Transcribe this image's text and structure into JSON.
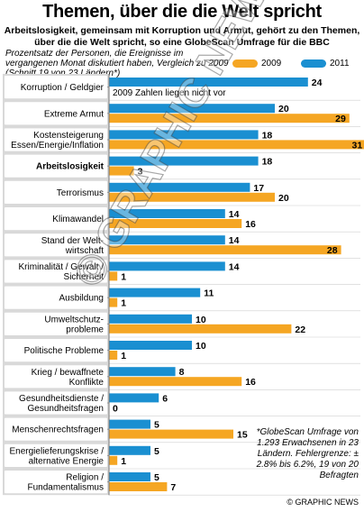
{
  "title": "Themen, über die die Welt spricht",
  "subtitle": "Arbeitslosigkeit, gemeinsam mit Korruption und Armut, gehört zu den Themen, über die die Welt spricht, so eine GlobeScan Umfrage für die BBC",
  "description": "Prozentsatz der Personen, die Ereignisse im vergangenen Monat diskutiert haben, Vergleich zu 2009 (Schnitt 19 von 23 Ländern*)",
  "legend": {
    "y2009": "2009",
    "y2011": "2011",
    "color2009": "#f5a623",
    "color2011": "#1a8fd1"
  },
  "annotation": "2009 Zahlen liegen nicht vor",
  "footnote": "*GlobeScan Umfrage von 1.293 Erwachsenen in 23 Ländern. Fehlergrenze: ± 2.8% bis 6.2%, 19 von 20 Befragten",
  "credit": "© GRAPHIC NEWS",
  "watermark": "© GRAPHIC NEWS",
  "chart_data": {
    "type": "bar",
    "orientation": "horizontal",
    "categories": [
      "Korruption / Geldgier",
      "Extreme Armut",
      "Kostensteigerung Essen/Energie/Inflation",
      "Arbeitslosigkeit",
      "Terrorismus",
      "Klimawandel",
      "Stand der Welt-wirtschaft",
      "Kriminalität / Gewalt / Sicherheit",
      "Ausbildung",
      "Umweltschutz-probleme",
      "Politische Probleme",
      "Krieg / bewaffnete Konflikte",
      "Gesundheitsdienste / Gesundheitsfragen",
      "Menschenrechtsfragen",
      "Energielieferungskrise / alternative Energie",
      "Religion / Fundamentalismus"
    ],
    "category_lines": [
      [
        "Korruption / Geldgier"
      ],
      [
        "Extreme Armut"
      ],
      [
        "Kostensteigerung",
        "Essen/Energie/Inflation"
      ],
      [
        "Arbeitslosigkeit"
      ],
      [
        "Terrorismus"
      ],
      [
        "Klimawandel"
      ],
      [
        "Stand der Welt-",
        "wirtschaft"
      ],
      [
        "Kriminalität / Gewalt /",
        "Sicherheit"
      ],
      [
        "Ausbildung"
      ],
      [
        "Umweltschutz-",
        "probleme"
      ],
      [
        "Politische Probleme"
      ],
      [
        "Krieg / bewaffnete",
        "Konflikte"
      ],
      [
        "Gesundheitsdienste /",
        "Gesundheitsfragen"
      ],
      [
        "Menschenrechtsfragen"
      ],
      [
        "Energielieferungskrise /",
        "alternative Energie"
      ],
      [
        "Religion /",
        "Fundamentalismus"
      ]
    ],
    "bold_categories": [
      "Arbeitslosigkeit"
    ],
    "series": [
      {
        "name": "2011",
        "values": [
          24,
          20,
          18,
          18,
          17,
          14,
          14,
          14,
          11,
          10,
          10,
          8,
          6,
          5,
          5,
          5
        ]
      },
      {
        "name": "2009",
        "values": [
          null,
          29,
          31,
          3,
          20,
          16,
          28,
          1,
          1,
          22,
          1,
          16,
          0,
          15,
          1,
          7
        ]
      }
    ],
    "xlim": [
      0,
      31
    ]
  }
}
